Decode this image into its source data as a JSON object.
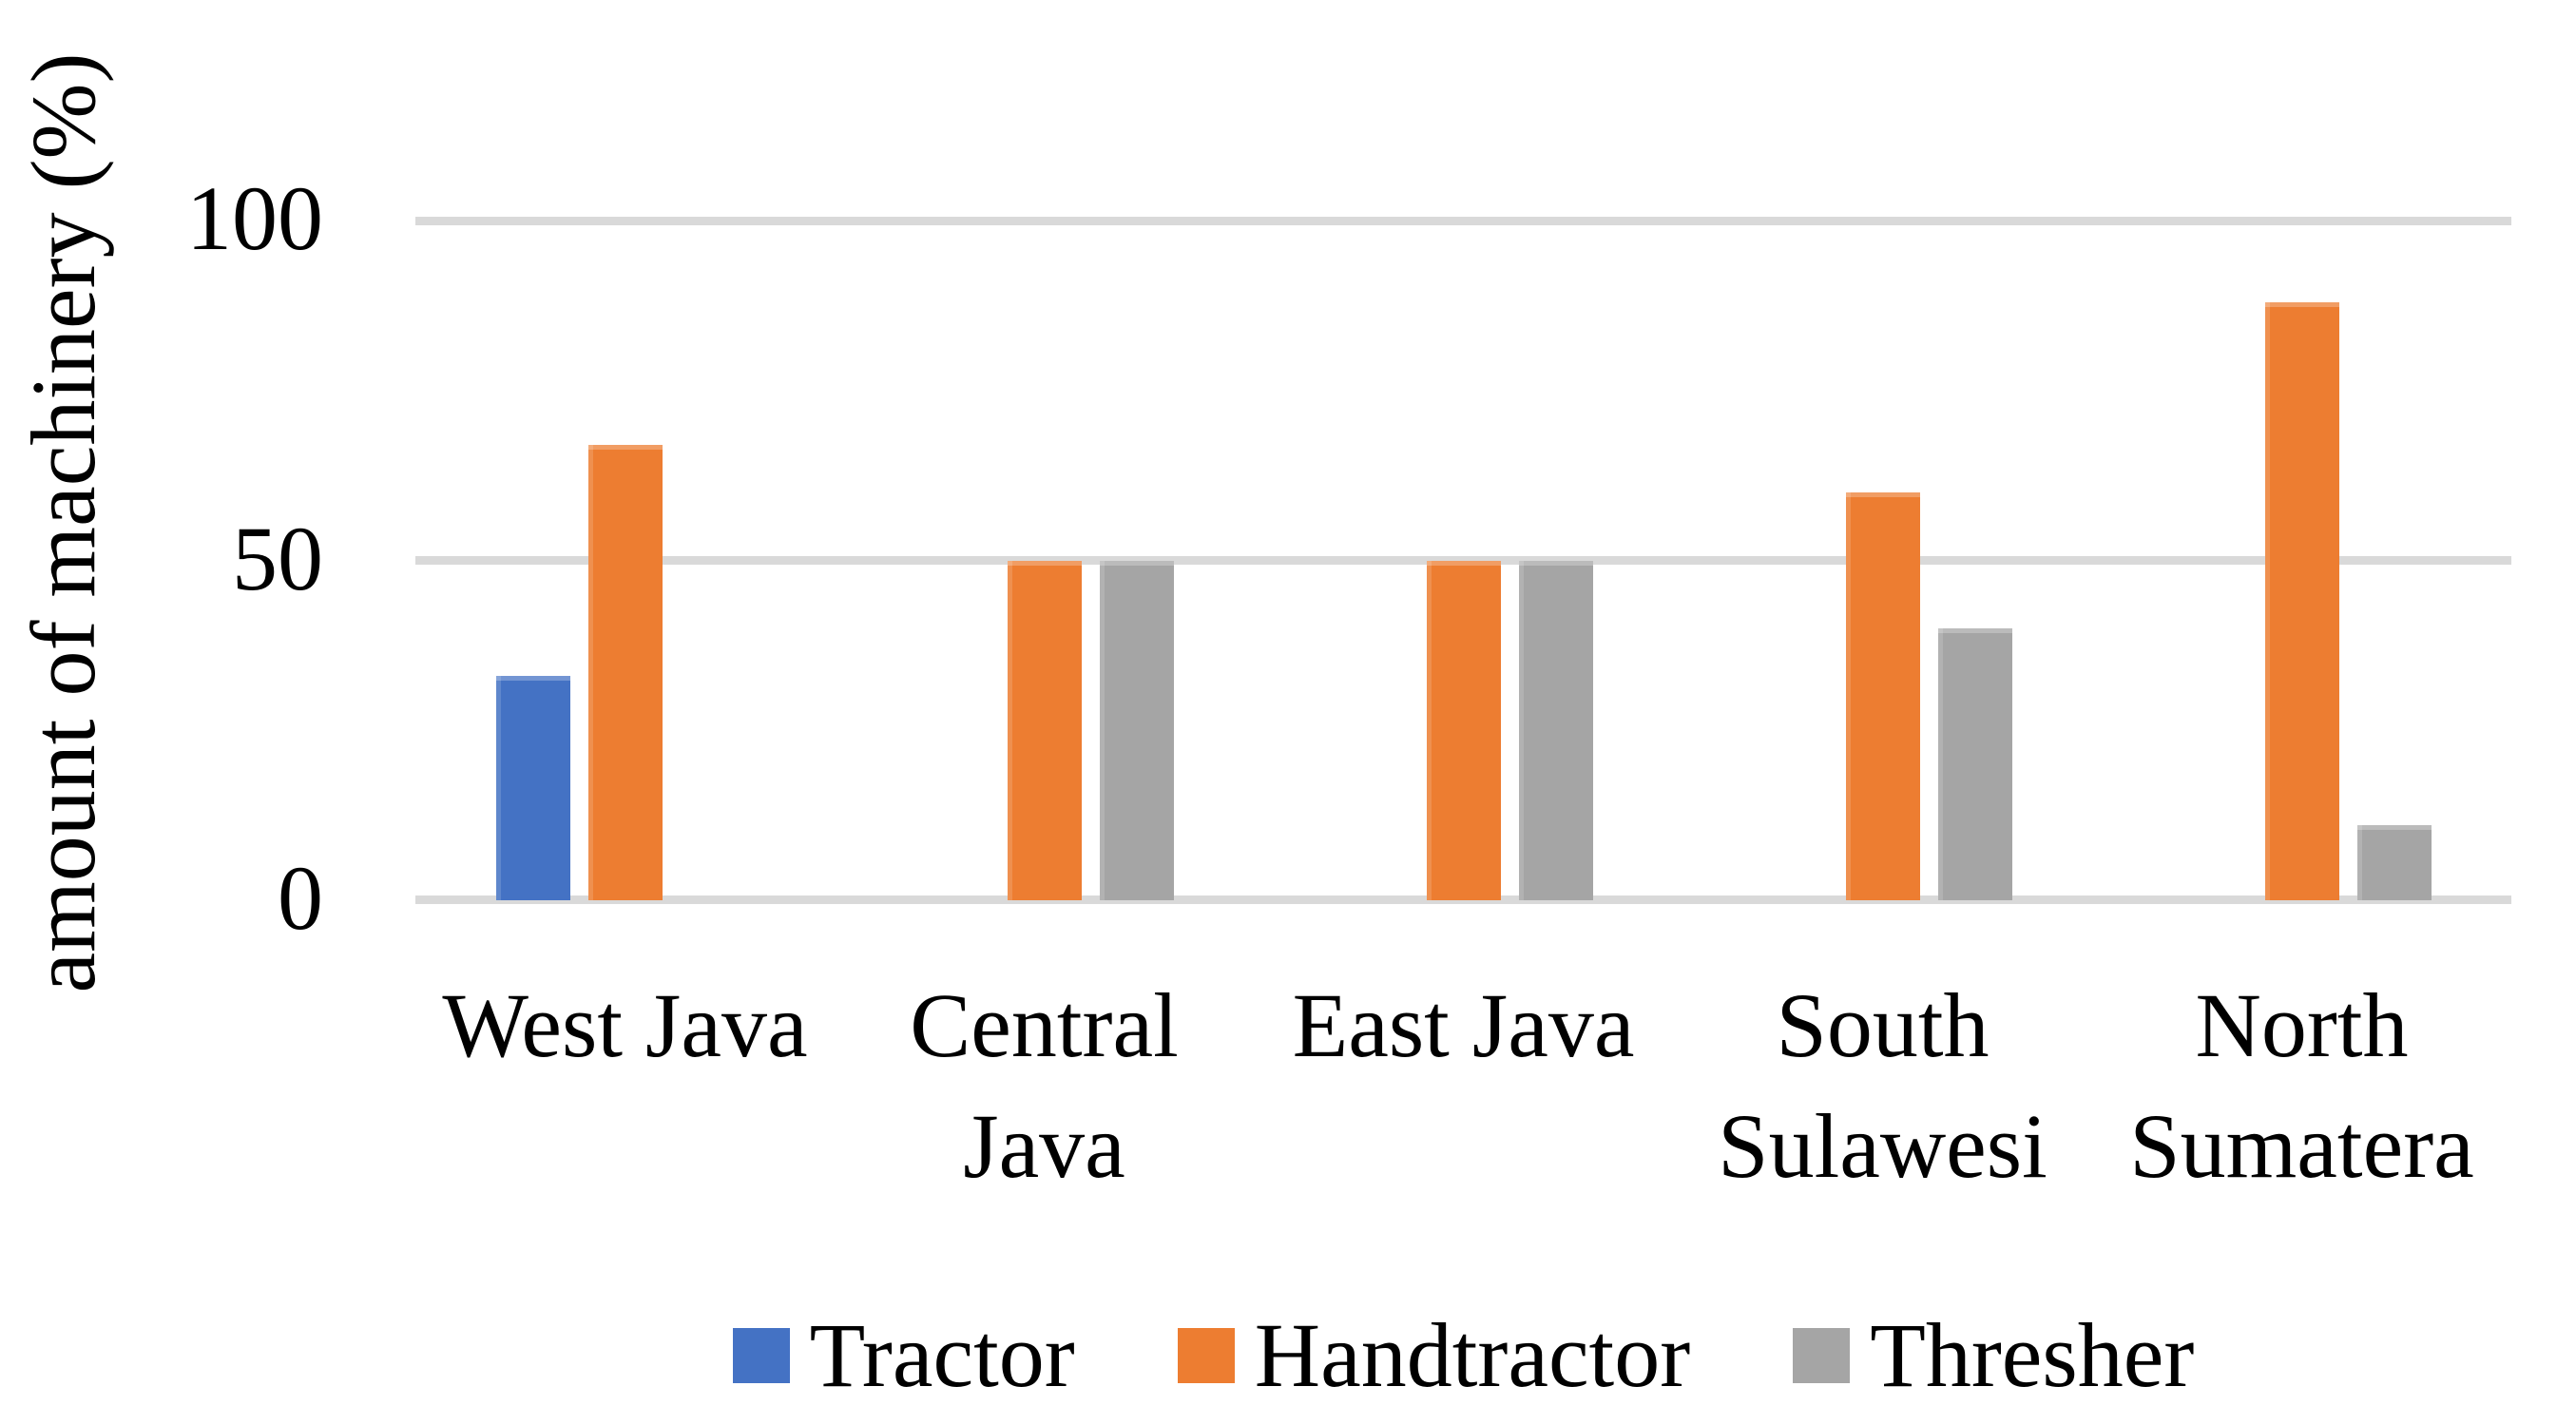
{
  "chart_data": {
    "type": "bar",
    "title": "",
    "xlabel": "",
    "ylabel": "amount of machinery (%)",
    "ylim": [
      0,
      100
    ],
    "yticks": [
      0,
      50,
      100
    ],
    "grid_values": [
      50,
      100
    ],
    "grid_on": true,
    "grid_color": "#D9D9D9",
    "axis_line_color": "#D9D9D9",
    "text_color": "#000000",
    "background_color": "#FFFFFF",
    "legend_position": "bottom",
    "categories": [
      "West Java",
      "Central Java",
      "East Java",
      "South Sulawesi",
      "North Sumatera"
    ],
    "category_label_lines": [
      [
        "West Java"
      ],
      [
        "Central",
        "Java"
      ],
      [
        "East Java"
      ],
      [
        "South",
        "Sulawesi"
      ],
      [
        "North",
        "Sumatera"
      ]
    ],
    "series": [
      {
        "name": "Tractor",
        "color": "#4472C4",
        "values": [
          33,
          0,
          0,
          0,
          0
        ]
      },
      {
        "name": "Handtractor",
        "color": "#ED7D31",
        "values": [
          67,
          50,
          50,
          60,
          88
        ]
      },
      {
        "name": "Thresher",
        "color": "#A5A5A5",
        "values": [
          0,
          50,
          50,
          40,
          11
        ]
      }
    ]
  }
}
